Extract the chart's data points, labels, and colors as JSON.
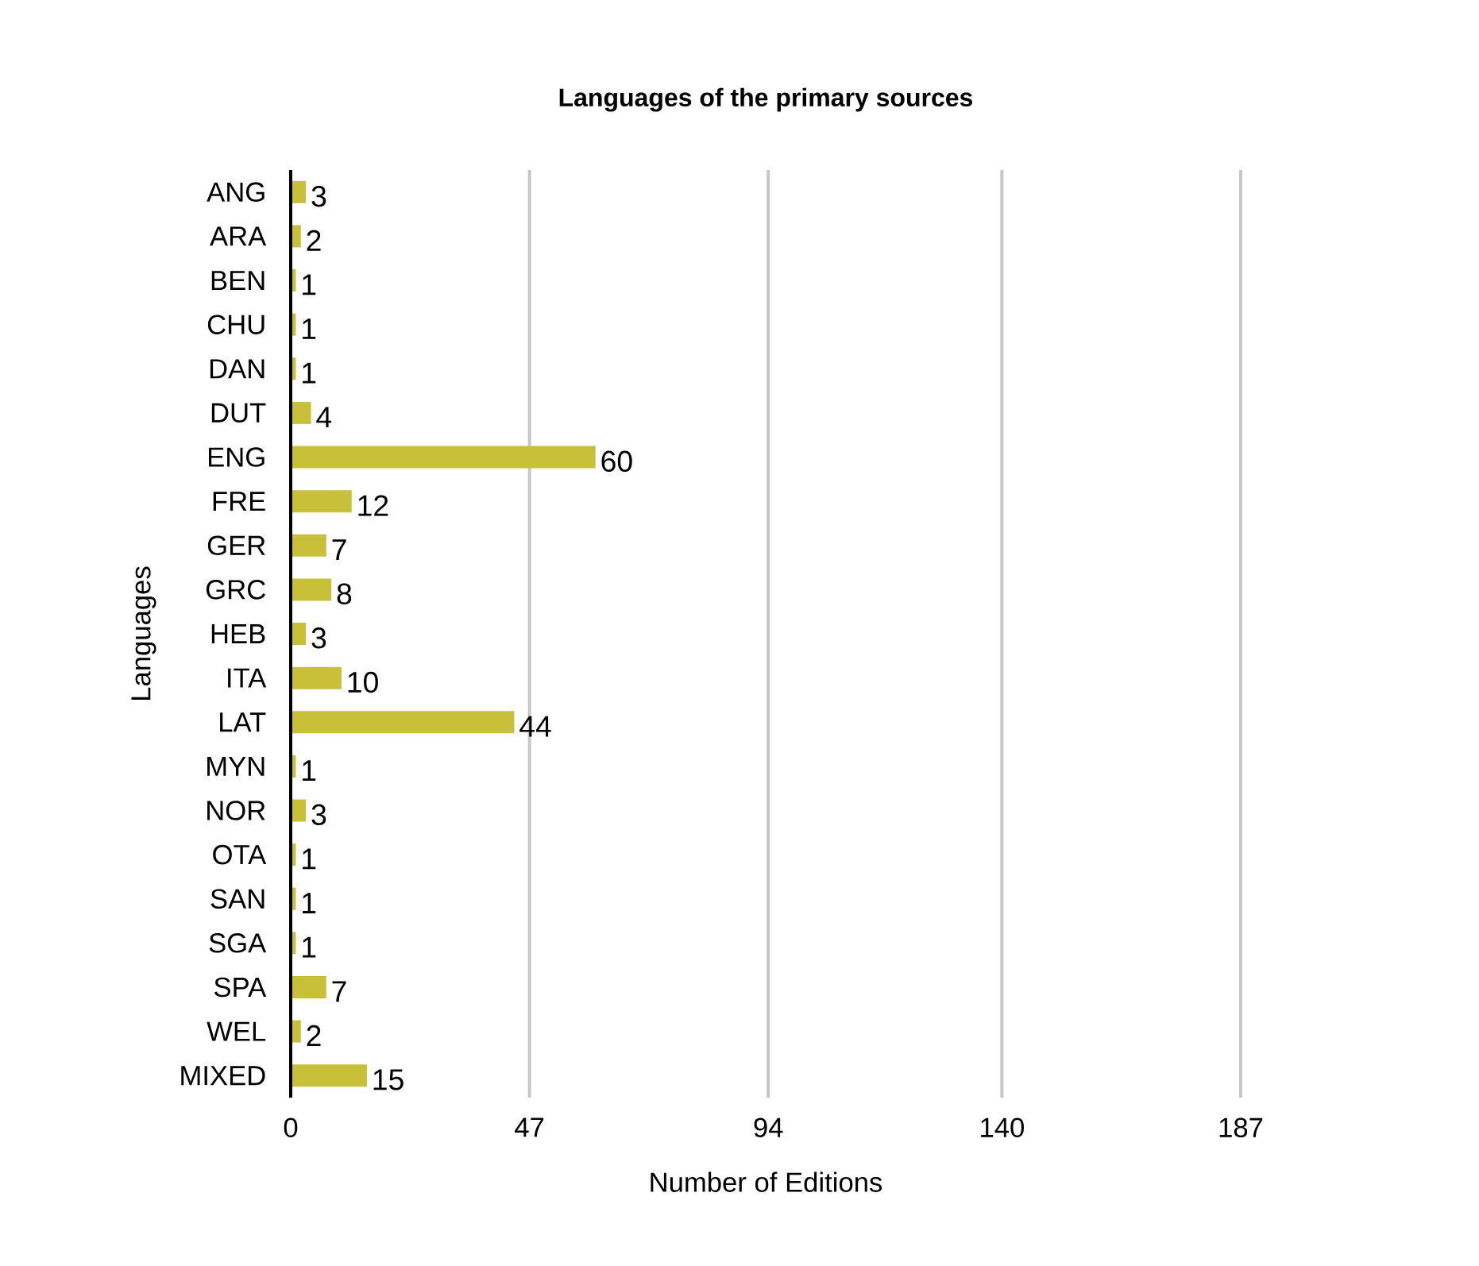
{
  "chart_data": {
    "type": "bar",
    "orientation": "horizontal",
    "title": "Languages of the primary sources",
    "xlabel": "Number of Editions",
    "ylabel": "Languages",
    "categories": [
      "ANG",
      "ARA",
      "BEN",
      "CHU",
      "DAN",
      "DUT",
      "ENG",
      "FRE",
      "GER",
      "GRC",
      "HEB",
      "ITA",
      "LAT",
      "MYN",
      "NOR",
      "OTA",
      "SAN",
      "SGA",
      "SPA",
      "WEL",
      "MIXED"
    ],
    "values": [
      3,
      2,
      1,
      1,
      1,
      4,
      60,
      12,
      7,
      8,
      3,
      10,
      44,
      1,
      3,
      1,
      1,
      1,
      7,
      2,
      15
    ],
    "color": "#c9c03a",
    "xlim": [
      0,
      187
    ],
    "xticks": [
      0,
      47,
      94,
      140,
      187
    ],
    "grid": "x",
    "data_labels": true
  }
}
